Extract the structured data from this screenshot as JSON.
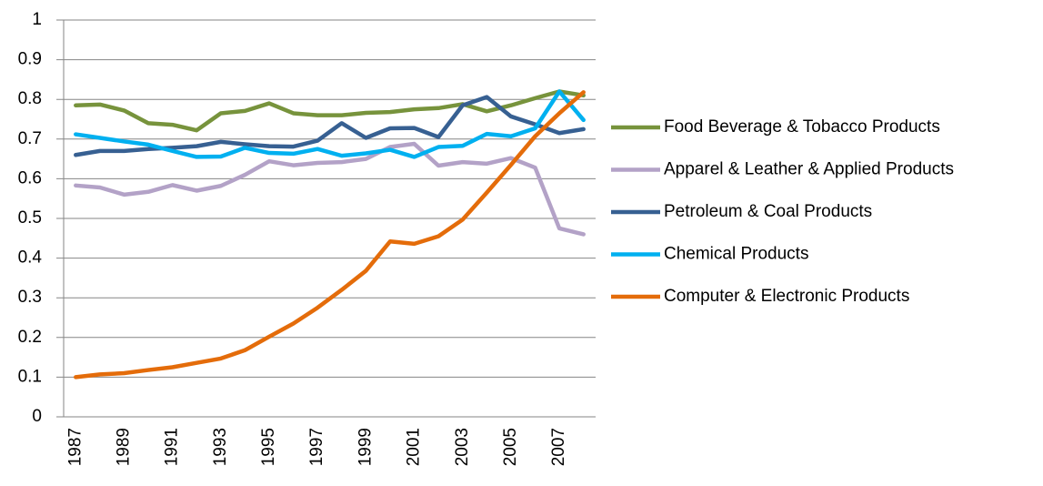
{
  "chart_data": {
    "type": "line",
    "categories": [
      "1987",
      null,
      "1989",
      null,
      "1991",
      null,
      "1993",
      null,
      "1995",
      null,
      "1997",
      null,
      "1999",
      null,
      "2001",
      null,
      "2003",
      null,
      "2005",
      null,
      "2007",
      null
    ],
    "series": [
      {
        "name": "Food Beverage & Tobacco Products",
        "color": "#77933c",
        "values": [
          0.785,
          0.787,
          0.772,
          0.74,
          0.736,
          0.722,
          0.765,
          0.771,
          0.79,
          0.765,
          0.76,
          0.76,
          0.766,
          0.768,
          0.775,
          0.778,
          0.788,
          0.77,
          0.785,
          0.803,
          0.82,
          0.81
        ]
      },
      {
        "name": "Apparel & Leather & Applied Products",
        "color": "#b3a2c7",
        "values": [
          0.583,
          0.578,
          0.56,
          0.567,
          0.584,
          0.57,
          0.582,
          0.61,
          0.644,
          0.634,
          0.64,
          0.642,
          0.65,
          0.68,
          0.688,
          0.633,
          0.642,
          0.638,
          0.652,
          0.628,
          0.475,
          0.46
        ]
      },
      {
        "name": "Petroleum & Coal Products",
        "color": "#376092",
        "values": [
          0.66,
          0.67,
          0.67,
          0.675,
          0.678,
          0.682,
          0.693,
          0.687,
          0.682,
          0.681,
          0.696,
          0.74,
          0.703,
          0.727,
          0.728,
          0.705,
          0.785,
          0.806,
          0.757,
          0.737,
          0.715,
          0.725
        ]
      },
      {
        "name": "Chemical Products",
        "color": "#00b0f0",
        "values": [
          0.712,
          0.703,
          0.694,
          0.686,
          0.67,
          0.655,
          0.656,
          0.678,
          0.665,
          0.663,
          0.675,
          0.658,
          0.664,
          0.673,
          0.655,
          0.68,
          0.683,
          0.713,
          0.707,
          0.727,
          0.82,
          0.748
        ]
      },
      {
        "name": "Computer & Electronic Products",
        "color": "#e46c0a",
        "values": [
          0.1,
          0.107,
          0.11,
          0.118,
          0.125,
          0.136,
          0.147,
          0.168,
          0.202,
          0.235,
          0.275,
          0.32,
          0.368,
          0.442,
          0.436,
          0.455,
          0.497,
          0.565,
          0.635,
          0.707,
          0.765,
          0.818
        ]
      }
    ],
    "ylim": [
      0,
      1
    ],
    "yticks": [
      0,
      0.1,
      0.2,
      0.3,
      0.4,
      0.5,
      0.6,
      0.7,
      0.8,
      0.9,
      1
    ],
    "grid": true,
    "legend": "right"
  }
}
